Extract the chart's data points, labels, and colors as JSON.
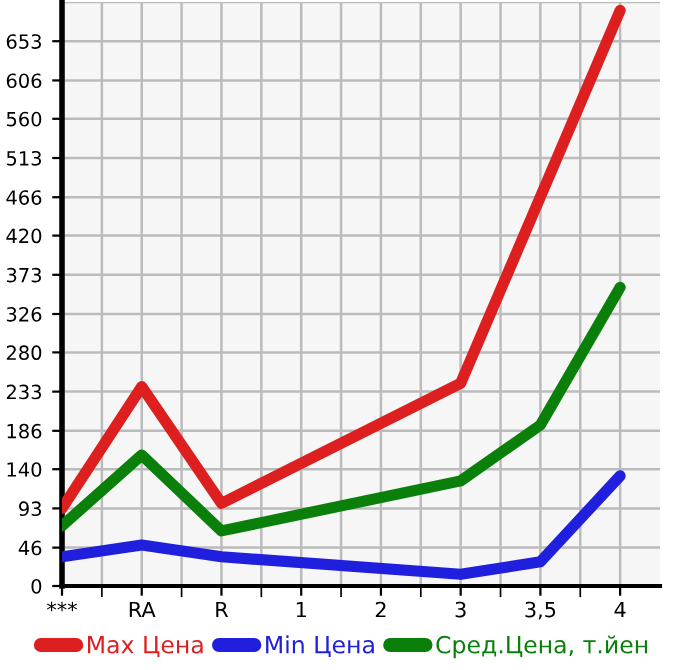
{
  "chart_data": {
    "type": "line",
    "categories": [
      "***",
      "RA",
      "R",
      "1",
      "2",
      "3",
      "3,5",
      "4"
    ],
    "series": [
      {
        "name": "Max Цена",
        "color": "#dd1f1f",
        "values": [
          93,
          239,
          99,
          null,
          null,
          243,
          null,
          690
        ]
      },
      {
        "name": "Min Цена",
        "color": "#1f1fdd",
        "values": [
          35,
          49,
          35,
          null,
          null,
          14,
          29,
          132
        ]
      },
      {
        "name": "Сред.Цена, т.йен",
        "color": "#0a800a",
        "values": [
          72,
          157,
          66,
          null,
          null,
          126,
          193,
          358
        ]
      }
    ],
    "ylim": [
      0,
      700
    ],
    "yticks": [
      0,
      46,
      93,
      140,
      186,
      233,
      280,
      326,
      373,
      420,
      466,
      513,
      560,
      606,
      653
    ],
    "grid": true,
    "legend": "bottom",
    "marker": "none",
    "line_style": "solid"
  }
}
